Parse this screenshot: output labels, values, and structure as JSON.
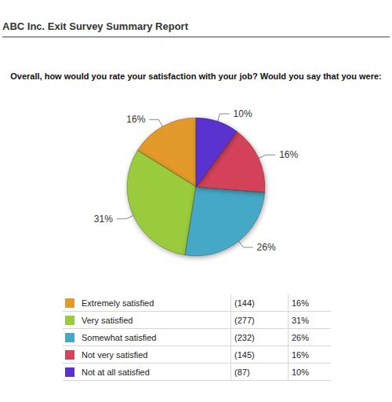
{
  "header": "ABC Inc. Exit Survey Summary Report",
  "chart_data": {
    "type": "pie",
    "title": "Overall, how would you rate your satisfaction with your job? Would you say that you were:",
    "categories": [
      "Extremely satisfied",
      "Very satisfied",
      "Somewhat satisfied",
      "Not very satisfied",
      "Not at all satisfied"
    ],
    "values": [
      16,
      31,
      26,
      16,
      10
    ],
    "value_labels": [
      "16%",
      "31%",
      "26%",
      "16%",
      "10%"
    ],
    "counts": [
      144,
      277,
      232,
      145,
      87
    ],
    "count_labels": [
      "(144)",
      "(277)",
      "(232)",
      "(145)",
      "(87)"
    ],
    "colors": [
      "#e39a2c",
      "#9acb3c",
      "#45a8c6",
      "#d4435a",
      "#5a30d0"
    ],
    "data_labels": true
  }
}
